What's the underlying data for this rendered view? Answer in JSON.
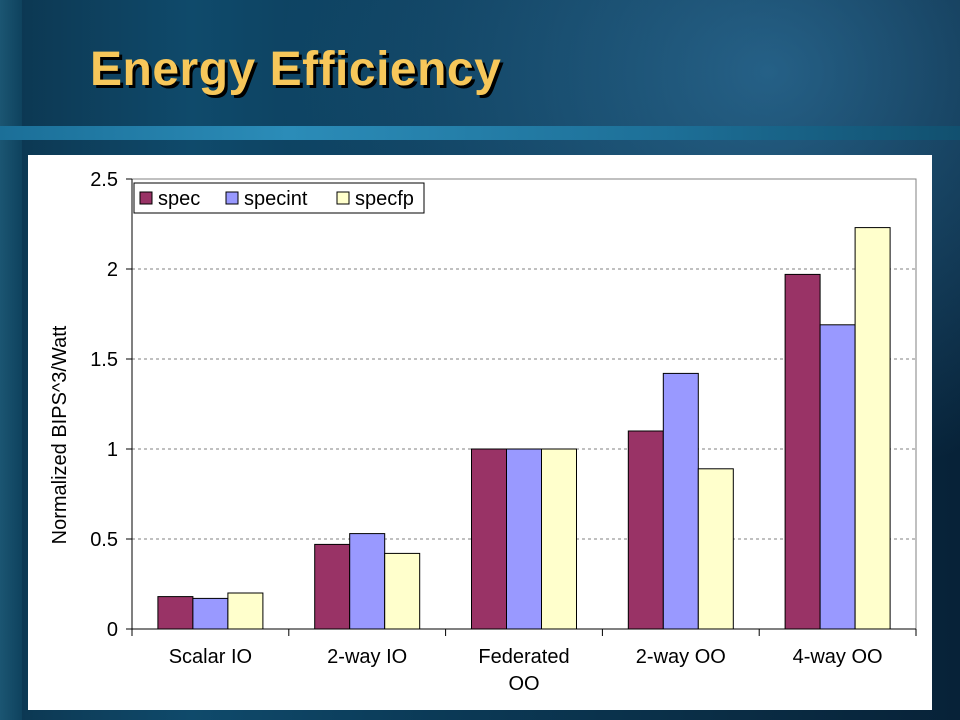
{
  "slide": {
    "title": "Energy Efficiency"
  },
  "colors": {
    "spec": "#993366",
    "specint": "#9999ff",
    "specfp": "#ffffcc",
    "title": "#f7c75a"
  },
  "chart_data": {
    "type": "bar",
    "ylabel": "Normalized BIPS^3/Watt",
    "ylim": [
      0,
      2.5
    ],
    "yticks": [
      "0",
      "0.5",
      "1",
      "1.5",
      "2",
      "2.5"
    ],
    "grid": true,
    "legend_position": "top-left",
    "categories": [
      [
        "Scalar IO"
      ],
      [
        "2-way IO"
      ],
      [
        "Federated",
        "OO"
      ],
      [
        "2-way OO"
      ],
      [
        "4-way OO"
      ]
    ],
    "series": [
      {
        "name": "spec",
        "values": [
          0.18,
          0.47,
          1.0,
          1.1,
          1.97
        ]
      },
      {
        "name": "specint",
        "values": [
          0.17,
          0.53,
          1.0,
          1.42,
          1.69
        ]
      },
      {
        "name": "specfp",
        "values": [
          0.2,
          0.42,
          1.0,
          0.89,
          2.23
        ]
      }
    ]
  }
}
